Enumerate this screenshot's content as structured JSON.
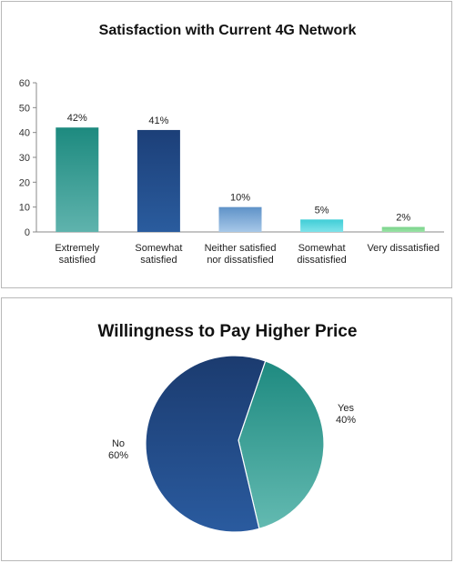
{
  "chart_data": [
    {
      "type": "bar",
      "title": "Satisfaction with Current 4G Network",
      "categories": [
        [
          "Extremely",
          "satisfied"
        ],
        [
          "Somewhat",
          "satisfied"
        ],
        [
          "Neither satisfied",
          "nor dissatisfied"
        ],
        [
          "Somewhat",
          "dissatisfied"
        ],
        [
          "Very dissatisfied"
        ]
      ],
      "values": [
        42,
        41,
        10,
        5,
        2
      ],
      "data_labels": [
        "42%",
        "41%",
        "10%",
        "5%",
        "2%"
      ],
      "ylim": [
        0,
        60
      ],
      "yticks": [
        0,
        10,
        20,
        30,
        40,
        50,
        60
      ],
      "grid": false,
      "colors": [
        [
          "#5fb3ad",
          "#1d8a7f"
        ],
        [
          "#2a5c9e",
          "#1c3f78"
        ],
        [
          "#a7c8e8",
          "#5f92c8"
        ],
        [
          "#7fe3ea",
          "#3fcdd6"
        ],
        [
          "#9be3a6",
          "#79d38a"
        ]
      ]
    },
    {
      "type": "pie",
      "title": "Willingness to Pay Higher Price",
      "slices": [
        {
          "label": "Yes",
          "value": 40,
          "pct_label": "40%",
          "colors": [
            "#63bab1",
            "#1e8a80"
          ]
        },
        {
          "label": "No",
          "value": 60,
          "pct_label": "60%",
          "colors": [
            "#2a5b9f",
            "#1b3b6f"
          ]
        }
      ],
      "legend": "none"
    }
  ]
}
